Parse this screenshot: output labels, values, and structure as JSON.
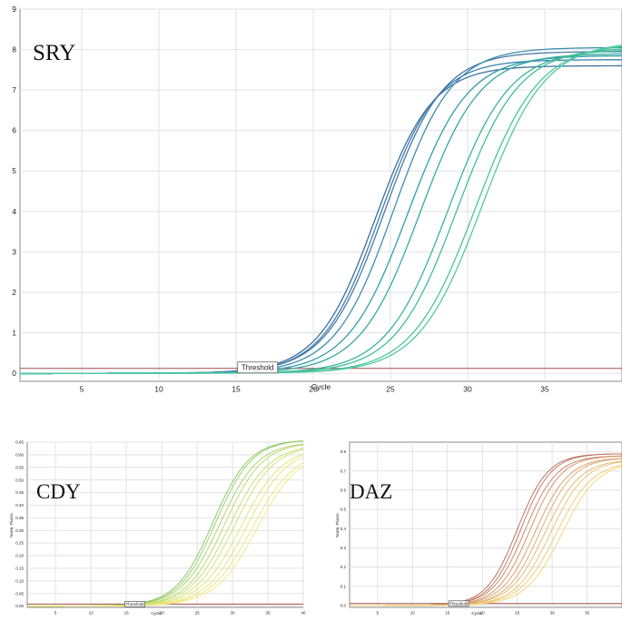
{
  "chart_data": [
    {
      "type": "line",
      "title": "SRY",
      "xlabel": "Cycle",
      "ylabel": "",
      "xlim": [
        1,
        40
      ],
      "ylim": [
        -0.2,
        9
      ],
      "x_ticks": [
        "5",
        "10",
        "15",
        "20",
        "25",
        "30",
        "35"
      ],
      "y_ticks": [
        "0",
        "1",
        "2",
        "3",
        "4",
        "5",
        "6",
        "7",
        "8",
        "9"
      ],
      "threshold_label": "Threshold",
      "threshold_value": 0.12,
      "grid": true,
      "series_colors": [
        "#3f6fa3",
        "#3d7fb0",
        "#4a79a8",
        "#3a8fb0",
        "#2f9ea9",
        "#36a8a0",
        "#3ab39a",
        "#3fbf95",
        "#4ac59a",
        "#52c9a2"
      ],
      "series": [
        {
          "midpoint": 24.0,
          "slope": 1.85,
          "plateau": 7.6
        },
        {
          "midpoint": 24.3,
          "slope": 1.85,
          "plateau": 7.75
        },
        {
          "midpoint": 24.6,
          "slope": 1.9,
          "plateau": 7.95
        },
        {
          "midpoint": 25.2,
          "slope": 1.9,
          "plateau": 8.05
        },
        {
          "midpoint": 26.1,
          "slope": 1.95,
          "plateau": 7.85
        },
        {
          "midpoint": 26.9,
          "slope": 1.95,
          "plateau": 7.9
        },
        {
          "midpoint": 28.7,
          "slope": 2.0,
          "plateau": 8.0
        },
        {
          "midpoint": 29.3,
          "slope": 2.0,
          "plateau": 8.05
        },
        {
          "midpoint": 30.5,
          "slope": 2.05,
          "plateau": 8.15
        },
        {
          "midpoint": 30.9,
          "slope": 2.05,
          "plateau": 8.2
        }
      ]
    },
    {
      "type": "line",
      "title": "CDY",
      "xlabel": "Cycle",
      "ylabel": "Norm. Fluoro.",
      "xlim": [
        1,
        40
      ],
      "ylim": [
        -0.005,
        0.65
      ],
      "x_ticks": [
        "5",
        "10",
        "15",
        "20",
        "25",
        "30",
        "35",
        "40"
      ],
      "y_ticks": [
        "0.00",
        "0.05",
        "0.10",
        "0.15",
        "0.20",
        "0.25",
        "0.30",
        "0.35",
        "0.40",
        "0.45",
        "0.50",
        "0.55",
        "0.60",
        "0.65"
      ],
      "threshold_label": "Threshold",
      "threshold_value": 0.008,
      "grid": true,
      "series_colors": [
        "#7fc65a",
        "#93cd5c",
        "#a5d25f",
        "#b6d763",
        "#c6dc66",
        "#d3e06a",
        "#dfe36c",
        "#e6e46f",
        "#eee672",
        "#f2e87a"
      ],
      "series": [
        {
          "midpoint": 27.2,
          "slope": 2.6,
          "plateau": 0.66
        },
        {
          "midpoint": 27.6,
          "slope": 2.6,
          "plateau": 0.66
        },
        {
          "midpoint": 28.2,
          "slope": 2.7,
          "plateau": 0.65
        },
        {
          "midpoint": 28.9,
          "slope": 2.7,
          "plateau": 0.65
        },
        {
          "midpoint": 29.6,
          "slope": 2.8,
          "plateau": 0.64
        },
        {
          "midpoint": 30.3,
          "slope": 2.8,
          "plateau": 0.64
        },
        {
          "midpoint": 31.2,
          "slope": 2.9,
          "plateau": 0.63
        },
        {
          "midpoint": 32.0,
          "slope": 2.9,
          "plateau": 0.63
        },
        {
          "midpoint": 32.8,
          "slope": 3.0,
          "plateau": 0.62
        },
        {
          "midpoint": 33.5,
          "slope": 3.0,
          "plateau": 0.62
        }
      ]
    },
    {
      "type": "line",
      "title": "DAZ",
      "xlabel": "Cycle",
      "ylabel": "Norm. Fluoro.",
      "xlim": [
        1,
        40
      ],
      "ylim": [
        -0.01,
        0.85
      ],
      "x_ticks": [
        "5",
        "10",
        "15",
        "20",
        "25",
        "30",
        "35"
      ],
      "y_ticks": [
        "0.0",
        "0.1",
        "0.2",
        "0.3",
        "0.4",
        "0.5",
        "0.6",
        "0.7",
        "0.8"
      ],
      "threshold_label": "Threshold",
      "threshold_value": 0.01,
      "grid": true,
      "series_colors": [
        "#b5655a",
        "#c0705c",
        "#c97c5e",
        "#d08a60",
        "#d89862",
        "#dea664",
        "#e4b466",
        "#e8c068",
        "#ecca6a",
        "#efd36c"
      ],
      "series": [
        {
          "midpoint": 25.0,
          "slope": 2.2,
          "plateau": 0.79
        },
        {
          "midpoint": 25.5,
          "slope": 2.2,
          "plateau": 0.79
        },
        {
          "midpoint": 26.1,
          "slope": 2.3,
          "plateau": 0.78
        },
        {
          "midpoint": 26.8,
          "slope": 2.3,
          "plateau": 0.78
        },
        {
          "midpoint": 27.6,
          "slope": 2.4,
          "plateau": 0.77
        },
        {
          "midpoint": 28.3,
          "slope": 2.4,
          "plateau": 0.77
        },
        {
          "midpoint": 29.0,
          "slope": 2.5,
          "plateau": 0.76
        },
        {
          "midpoint": 29.8,
          "slope": 2.5,
          "plateau": 0.76
        },
        {
          "midpoint": 30.6,
          "slope": 2.6,
          "plateau": 0.75
        },
        {
          "midpoint": 31.4,
          "slope": 2.6,
          "plateau": 0.75
        }
      ]
    }
  ]
}
